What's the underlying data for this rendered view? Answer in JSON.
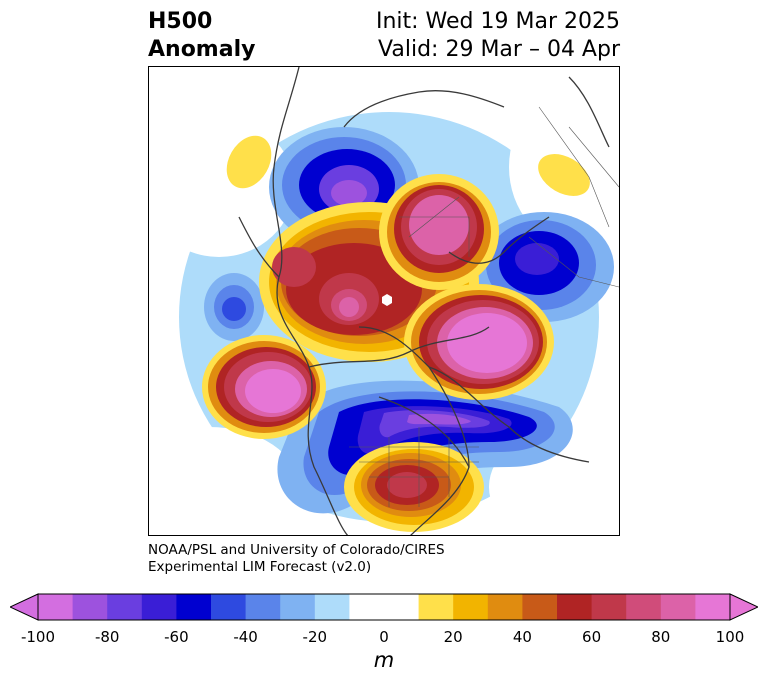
{
  "header": {
    "variable": "H500",
    "field": "Anomaly",
    "init": "Init: Wed 19 Mar 2025",
    "valid": "Valid: 29 Mar – 04 Apr"
  },
  "credit": {
    "line1": "NOAA/PSL and University of Colorado/CIRES",
    "line2": "Experimental LIM Forecast (v2.0)"
  },
  "colorbar": {
    "unit": "m",
    "ticks": [
      "-100",
      "-80",
      "-60",
      "-40",
      "-20",
      "0",
      "20",
      "40",
      "60",
      "80",
      "100"
    ],
    "colors": [
      "#d36ee0",
      "#9d52de",
      "#6a3ee0",
      "#3a1ed6",
      "#0000d0",
      "#2e4ae0",
      "#5a84ea",
      "#7fb2f2",
      "#aedcfa",
      "#ffffff",
      "#ffffff",
      "#ffe04a",
      "#f2b400",
      "#e08c10",
      "#c85a18",
      "#b02424",
      "#c0384a",
      "#d04c7a",
      "#dc62a8",
      "#e676d6"
    ]
  }
}
